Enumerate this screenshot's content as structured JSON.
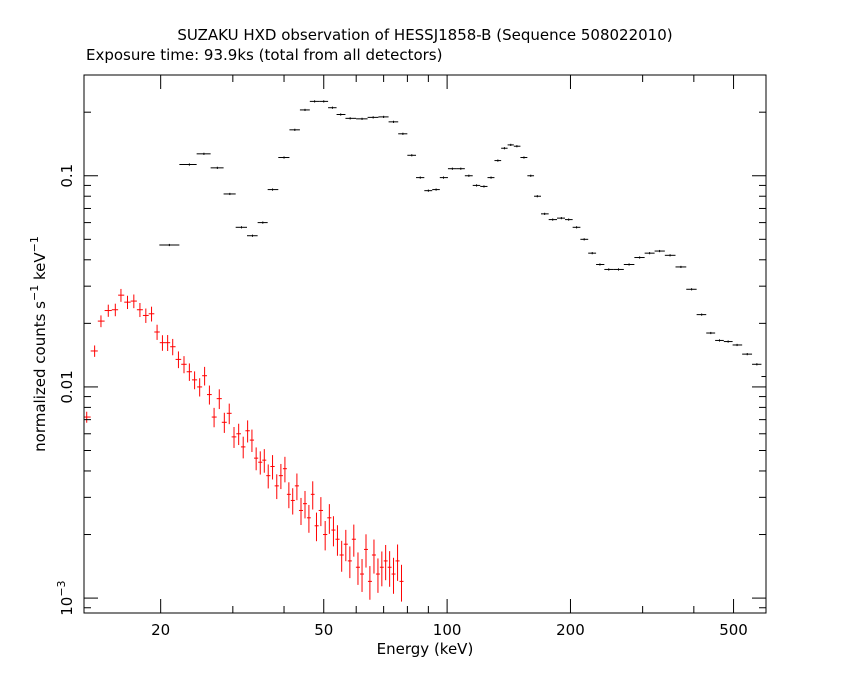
{
  "chart_data": {
    "type": "scatter",
    "title": "SUZAKU HXD observation of HESSJ1858-B (Sequence 508022010)",
    "subtitle": "Exposure time: 93.9ks (total from all detectors)",
    "xlabel": "Energy (keV)",
    "ylabel_main": "normalized counts s",
    "ylabel_exp1": "−1",
    "ylabel_mid": " keV",
    "ylabel_exp2": "−1",
    "xscale": "log",
    "yscale": "log",
    "xlim": [
      13,
      600
    ],
    "ylim": [
      0.00085,
      0.3
    ],
    "x_major_ticks": [
      {
        "value": 20,
        "label": "20"
      },
      {
        "value": 50,
        "label": "50"
      },
      {
        "value": 100,
        "label": "100"
      },
      {
        "value": 200,
        "label": "200"
      },
      {
        "value": 500,
        "label": "500"
      }
    ],
    "y_major_ticks": [
      {
        "value": 0.1,
        "label": "0.1"
      },
      {
        "value": 0.01,
        "label": "0.01"
      },
      {
        "value": 0.001,
        "label_base": "10",
        "label_exp": "−3"
      }
    ],
    "series": [
      {
        "color": "#000000",
        "style": "crosses",
        "points": [
          [
            21,
            0.047
          ],
          [
            23.5,
            0.113
          ],
          [
            25.5,
            0.127
          ],
          [
            27.5,
            0.109
          ],
          [
            29.5,
            0.082
          ],
          [
            31.5,
            0.057
          ],
          [
            33.5,
            0.052
          ],
          [
            35.5,
            0.06
          ],
          [
            37.5,
            0.086
          ],
          [
            40,
            0.122
          ],
          [
            42.5,
            0.165
          ],
          [
            45,
            0.205
          ],
          [
            47.5,
            0.225
          ],
          [
            50,
            0.225
          ],
          [
            52.5,
            0.21
          ],
          [
            55,
            0.195
          ],
          [
            58,
            0.187
          ],
          [
            62,
            0.186
          ],
          [
            66,
            0.189
          ],
          [
            70,
            0.19
          ],
          [
            74,
            0.18
          ],
          [
            78,
            0.158
          ],
          [
            82,
            0.125
          ],
          [
            86,
            0.098
          ],
          [
            90,
            0.085
          ],
          [
            94,
            0.086
          ],
          [
            98,
            0.098
          ],
          [
            103,
            0.108
          ],
          [
            108,
            0.108
          ],
          [
            113,
            0.1
          ],
          [
            118,
            0.09
          ],
          [
            123,
            0.089
          ],
          [
            128,
            0.098
          ],
          [
            133,
            0.118
          ],
          [
            138,
            0.135
          ],
          [
            143,
            0.14
          ],
          [
            148,
            0.138
          ],
          [
            154,
            0.122
          ],
          [
            160,
            0.1
          ],
          [
            166,
            0.08
          ],
          [
            173,
            0.066
          ],
          [
            181,
            0.062
          ],
          [
            190,
            0.063
          ],
          [
            198,
            0.062
          ],
          [
            207,
            0.057
          ],
          [
            216,
            0.05
          ],
          [
            226,
            0.043
          ],
          [
            236,
            0.038
          ],
          [
            248,
            0.036
          ],
          [
            262,
            0.036
          ],
          [
            278,
            0.038
          ],
          [
            295,
            0.041
          ],
          [
            312,
            0.043
          ],
          [
            330,
            0.044
          ],
          [
            350,
            0.042
          ],
          [
            372,
            0.037
          ],
          [
            395,
            0.029
          ],
          [
            418,
            0.022
          ],
          [
            440,
            0.018
          ],
          [
            462,
            0.0166
          ],
          [
            485,
            0.0164
          ],
          [
            510,
            0.0158
          ],
          [
            540,
            0.0143
          ],
          [
            570,
            0.0128
          ],
          [
            600,
            0.0112
          ]
        ]
      },
      {
        "color": "#ff0000",
        "style": "crosses",
        "points": [
          [
            13.2,
            0.0072
          ],
          [
            13.8,
            0.0148
          ],
          [
            14.3,
            0.0205
          ],
          [
            14.9,
            0.023
          ],
          [
            15.5,
            0.0232
          ],
          [
            16,
            0.0272
          ],
          [
            16.6,
            0.0252
          ],
          [
            17.2,
            0.0255
          ],
          [
            17.8,
            0.0232
          ],
          [
            18.4,
            0.0218
          ],
          [
            19,
            0.0222
          ],
          [
            19.6,
            0.0182
          ],
          [
            20.2,
            0.0162
          ],
          [
            20.8,
            0.0162
          ],
          [
            21.4,
            0.0155
          ],
          [
            22.1,
            0.0135
          ],
          [
            22.8,
            0.0128
          ],
          [
            23.5,
            0.0118
          ],
          [
            24.2,
            0.0108
          ],
          [
            24.9,
            0.01
          ],
          [
            25.6,
            0.0113
          ],
          [
            26.3,
            0.0092
          ],
          [
            27,
            0.0072
          ],
          [
            27.8,
            0.0088
          ],
          [
            28.6,
            0.0068
          ],
          [
            29.4,
            0.0075
          ],
          [
            30.2,
            0.0058
          ],
          [
            31,
            0.006
          ],
          [
            31.8,
            0.0052
          ],
          [
            32.6,
            0.0062
          ],
          [
            33.4,
            0.0056
          ],
          [
            34.2,
            0.0046
          ],
          [
            35,
            0.0044
          ],
          [
            35.8,
            0.0045
          ],
          [
            36.6,
            0.0038
          ],
          [
            37.5,
            0.0042
          ],
          [
            38.4,
            0.0034
          ],
          [
            39.3,
            0.0038
          ],
          [
            40.2,
            0.0041
          ],
          [
            41.1,
            0.0031
          ],
          [
            42,
            0.0029
          ],
          [
            43,
            0.0034
          ],
          [
            44,
            0.0026
          ],
          [
            45,
            0.0028
          ],
          [
            46,
            0.0024
          ],
          [
            47,
            0.0031
          ],
          [
            48,
            0.0022
          ],
          [
            49.2,
            0.0026
          ],
          [
            50.4,
            0.002
          ],
          [
            51.6,
            0.0024
          ],
          [
            52.8,
            0.0021
          ],
          [
            54,
            0.0019
          ],
          [
            55.3,
            0.0016
          ],
          [
            56.6,
            0.0018
          ],
          [
            57.9,
            0.0015
          ],
          [
            59.2,
            0.0019
          ],
          [
            60.6,
            0.0014
          ],
          [
            62,
            0.0013
          ],
          [
            63.4,
            0.0017
          ],
          [
            64.8,
            0.0012
          ],
          [
            66.3,
            0.0016
          ],
          [
            67.8,
            0.0013
          ],
          [
            69.3,
            0.0014
          ],
          [
            70.8,
            0.0015
          ],
          [
            72.4,
            0.0014
          ],
          [
            74,
            0.0013
          ],
          [
            75.7,
            0.0015
          ],
          [
            77.4,
            0.0012
          ]
        ]
      }
    ]
  }
}
